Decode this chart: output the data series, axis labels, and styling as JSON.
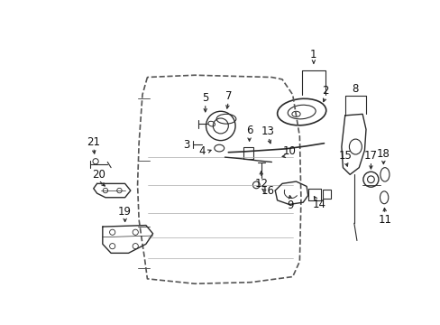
{
  "background_color": "#ffffff",
  "fig_width": 4.89,
  "fig_height": 3.6,
  "dpi": 100,
  "line_color": "#2a2a2a",
  "text_color": "#111111",
  "label_fontsize": 8.5
}
